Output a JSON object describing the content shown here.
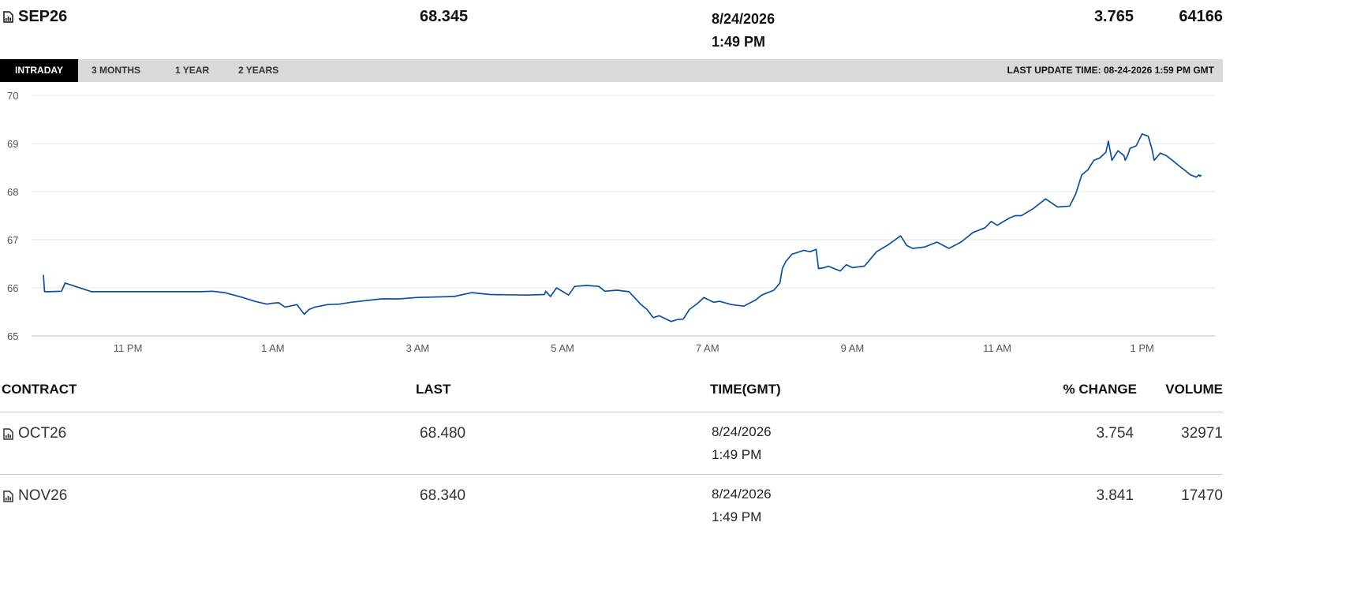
{
  "header": {
    "contract": "SEP26",
    "last": "68.345",
    "date": "8/24/2026",
    "time": "1:49 PM",
    "change": "3.765",
    "volume": "64166",
    "icon": "chart-document-icon"
  },
  "tabs": [
    {
      "label": "INTRADAY",
      "active": true
    },
    {
      "label": "3 MONTHS",
      "active": false
    },
    {
      "label": "1 YEAR",
      "active": false
    },
    {
      "label": "2 YEARS",
      "active": false
    }
  ],
  "last_update": "LAST UPDATE TIME: 08-24-2026 1:59 PM GMT",
  "colors": {
    "line": "#0e4ea1",
    "tabbar": "#d9d9d9",
    "grid": "#e6e6e6"
  },
  "chart_data": {
    "type": "line",
    "x_ticks": [
      "11 PM",
      "1 AM",
      "3 AM",
      "5 AM",
      "7 AM",
      "9 AM",
      "11 AM",
      "1 PM"
    ],
    "y_ticks": [
      "65",
      "66",
      "67",
      "68",
      "69",
      "70"
    ],
    "ylim": [
      65,
      70
    ],
    "grid": true,
    "x_range": [
      "9:50 PM",
      "1:59 PM"
    ],
    "series": [
      {
        "x": [
          "9:50 PM",
          "9:51 PM",
          "9:55 PM",
          "10:05 PM",
          "10:08 PM",
          "10:30 PM",
          "11:00 PM",
          "11:30 PM",
          "12:00 AM",
          "12:10 AM",
          "12:20 AM",
          "12:35 AM",
          "12:45 AM",
          "12:55 AM",
          "1:00 AM",
          "1:05 AM",
          "1:10 AM",
          "1:20 AM",
          "1:26 AM",
          "1:30 AM",
          "1:35 AM",
          "1:45 AM",
          "1:55 AM",
          "2:05 AM",
          "2:30 AM",
          "2:45 AM",
          "3:00 AM",
          "3:30 AM",
          "3:45 AM",
          "4:00 AM",
          "4:30 AM",
          "4:45 AM",
          "4:46 AM",
          "4:50 AM",
          "4:55 AM",
          "5:05 AM",
          "5:10 AM",
          "5:20 AM",
          "5:30 AM",
          "5:35 AM",
          "5:45 AM",
          "5:55 AM",
          "6:05 AM",
          "6:10 AM",
          "6:15 AM",
          "6:20 AM",
          "6:30 AM",
          "6:35 AM",
          "6:40 AM",
          "6:45 AM",
          "6:52 AM",
          "6:57 AM",
          "7:05 AM",
          "7:10 AM",
          "7:20 AM",
          "7:30 AM",
          "7:40 AM",
          "7:45 AM",
          "7:55 AM",
          "8:00 AM",
          "8:02 AM",
          "8:05 AM",
          "8:10 AM",
          "8:20 AM",
          "8:25 AM",
          "8:30 AM",
          "8:32 AM",
          "8:37 AM",
          "8:40 AM",
          "8:50 AM",
          "8:55 AM",
          "9:00 AM",
          "9:10 AM",
          "9:15 AM",
          "9:20 AM",
          "9:30 AM",
          "9:40 AM",
          "9:45 AM",
          "9:50 AM",
          "10:00 AM",
          "10:10 AM",
          "10:20 AM",
          "10:30 AM",
          "10:40 AM",
          "10:50 AM",
          "10:55 AM",
          "11:00 AM",
          "11:10 AM",
          "11:15 AM",
          "11:20 AM",
          "11:30 AM",
          "11:40 AM",
          "11:50 AM",
          "12:00 PM",
          "12:05 PM",
          "12:10 PM",
          "12:15 PM",
          "12:20 PM",
          "12:25 PM",
          "12:30 PM",
          "12:32 PM",
          "12:35 PM",
          "12:40 PM",
          "12:45 PM",
          "12:46 PM",
          "12:48 PM",
          "12:50 PM",
          "12:55 PM",
          "1:00 PM",
          "1:05 PM",
          "1:08 PM",
          "1:10 PM",
          "1:15 PM",
          "1:20 PM",
          "1:25 PM",
          "1:30 PM",
          "1:35 PM",
          "1:40 PM",
          "1:45 PM",
          "1:47 PM",
          "1:48 PM",
          "1:49 PM"
        ],
        "values": [
          66.27,
          65.92,
          65.92,
          65.93,
          66.1,
          65.92,
          65.92,
          65.92,
          65.92,
          65.93,
          65.9,
          65.8,
          65.72,
          65.66,
          65.68,
          65.69,
          65.6,
          65.65,
          65.45,
          65.55,
          65.6,
          65.65,
          65.66,
          65.7,
          65.77,
          65.77,
          65.8,
          65.82,
          65.9,
          65.86,
          65.85,
          65.86,
          65.93,
          65.82,
          66.0,
          65.85,
          66.03,
          66.05,
          66.03,
          65.93,
          65.95,
          65.92,
          65.65,
          65.55,
          65.38,
          65.42,
          65.3,
          65.34,
          65.35,
          65.55,
          65.68,
          65.8,
          65.7,
          65.72,
          65.65,
          65.62,
          65.75,
          65.85,
          65.95,
          66.1,
          66.4,
          66.55,
          66.7,
          66.78,
          66.75,
          66.8,
          66.4,
          66.42,
          66.45,
          66.35,
          66.48,
          66.42,
          66.45,
          66.6,
          66.75,
          66.9,
          67.08,
          66.88,
          66.82,
          66.85,
          66.95,
          66.82,
          66.95,
          67.15,
          67.25,
          67.38,
          67.3,
          67.45,
          67.5,
          67.5,
          67.65,
          67.85,
          67.68,
          67.7,
          67.95,
          68.35,
          68.45,
          68.65,
          68.7,
          68.82,
          69.05,
          68.65,
          68.85,
          68.75,
          68.65,
          68.75,
          68.9,
          68.95,
          69.2,
          69.15,
          68.9,
          68.65,
          68.8,
          68.75,
          68.65,
          68.55,
          68.45,
          68.35,
          68.3,
          68.35,
          68.32,
          68.345
        ]
      }
    ]
  },
  "table": {
    "columns": [
      "CONTRACT",
      "LAST",
      "TIME(GMT)",
      "% CHANGE",
      "VOLUME"
    ],
    "rows": [
      {
        "contract": "OCT26",
        "last": "68.480",
        "date": "8/24/2026",
        "time": "1:49 PM",
        "change": "3.754",
        "volume": "32971"
      },
      {
        "contract": "NOV26",
        "last": "68.340",
        "date": "8/24/2026",
        "time": "1:49 PM",
        "change": "3.841",
        "volume": "17470"
      }
    ]
  }
}
